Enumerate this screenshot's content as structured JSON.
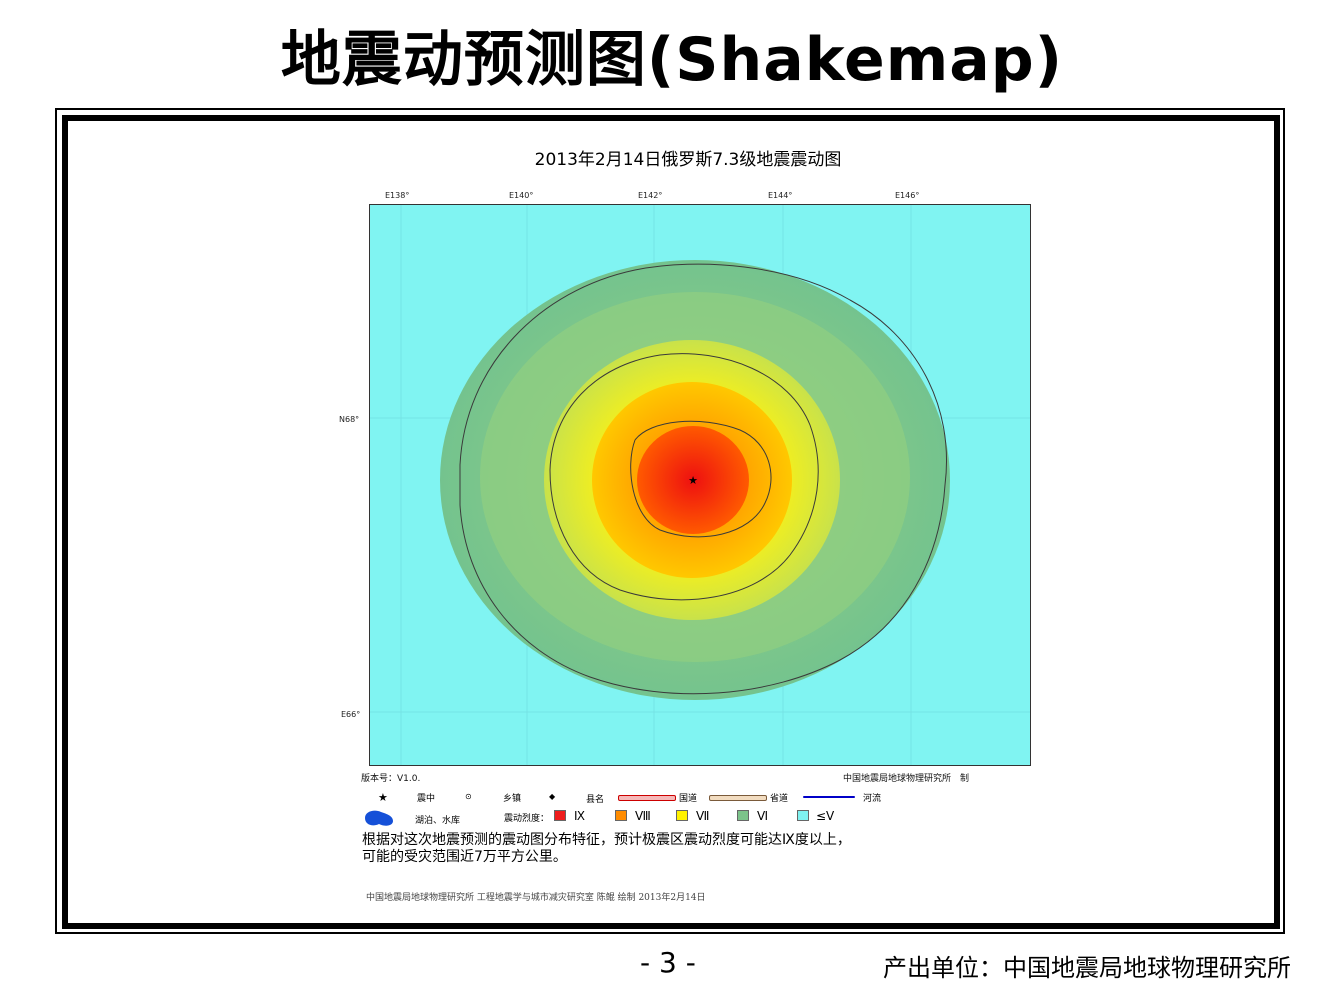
{
  "slide": {
    "title": "地震动预测图(Shakemap)",
    "page_number": "- 3 -",
    "producer": "产出单位：中国地震局地球物理研究所"
  },
  "map": {
    "title": "2013年2月14日俄罗斯7.3级地震震动图",
    "lon_ticks": [
      "E138°",
      "E140°",
      "E142°",
      "E144°",
      "E146°"
    ],
    "lat_ticks": [
      "N68°",
      "E66°"
    ],
    "version": "版本号：V1.0.",
    "agency": "中国地震局地球物理研究所　制",
    "epicenter_symbol": "★",
    "colors": {
      "ocean": "#80F4F2",
      "intensity_le5": "#7FF2F0",
      "intensity_6": "#7CC38A",
      "intensity_7": "#FFF200",
      "intensity_8": "#FF8C00",
      "intensity_9": "#EE1C1C"
    }
  },
  "legend": {
    "epicenter_label": "震中",
    "town_label": "乡镇",
    "county_label": "县名",
    "national_road_label": "国道",
    "provincial_road_label": "省道",
    "river_label": "河流",
    "lake_label": "湖泊、水库",
    "intensity_label": "震动烈度：",
    "intensity_levels": [
      "Ⅸ",
      "Ⅷ",
      "Ⅶ",
      "Ⅵ",
      "≤Ⅴ"
    ]
  },
  "note": {
    "line1": "根据对这次地震预测的震动图分布特征，预计极震区震动烈度可能达Ⅸ度以上，",
    "line2": "可能的受灾范围近7万平方公里。"
  },
  "credit": "中国地震局地球物理研究所 工程地震学与城市减灾研究室 陈鲲 绘制 2013年2月14日"
}
